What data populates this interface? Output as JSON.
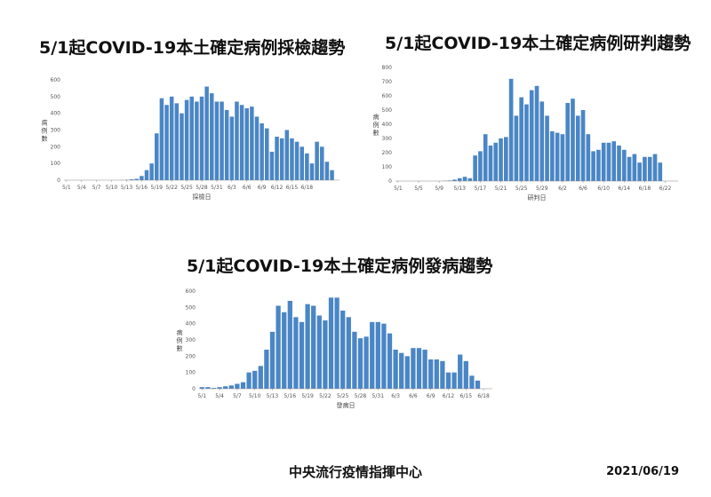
{
  "colors": {
    "bar": "#4a86c5",
    "axis": "#888888"
  },
  "footer": {
    "organization": "中央流行疫情指揮中心",
    "date": "2021/06/19"
  },
  "chart_data": [
    {
      "id": "sampling",
      "type": "bar",
      "title": "5/1起COVID-19本土確定病例採檢趨勢",
      "xlabel": "採檢日",
      "ylabel": "病例數",
      "ylim": [
        0,
        600
      ],
      "yticks": [
        0,
        100,
        200,
        300,
        400,
        500,
        600
      ],
      "tick_labels": [
        "5/1",
        "5/4",
        "5/7",
        "5/10",
        "5/13",
        "5/16",
        "5/19",
        "5/22",
        "5/25",
        "5/28",
        "5/31",
        "6/3",
        "6/6",
        "6/9",
        "6/12",
        "6/15",
        "6/18"
      ],
      "start_month": 5,
      "start_day": 1,
      "values": [
        0,
        0,
        0,
        0,
        0,
        0,
        0,
        0,
        0,
        0,
        0,
        1,
        2,
        5,
        8,
        25,
        60,
        100,
        280,
        490,
        450,
        500,
        460,
        400,
        480,
        500,
        470,
        500,
        560,
        520,
        470,
        470,
        420,
        380,
        470,
        450,
        430,
        440,
        380,
        340,
        310,
        170,
        260,
        250,
        300,
        250,
        230,
        200,
        160,
        100,
        230,
        200,
        110,
        60,
        0
      ],
      "footnote": ""
    },
    {
      "id": "diagnosis",
      "type": "bar",
      "title": "5/1起COVID-19本土確定病例研判趨勢",
      "xlabel": "研判日",
      "ylabel": "病例數",
      "ylim": [
        0,
        800
      ],
      "yticks": [
        0,
        100,
        200,
        300,
        400,
        500,
        600,
        700,
        800
      ],
      "tick_labels": [
        "5/1",
        "5/5",
        "5/9",
        "5/13",
        "5/17",
        "5/21",
        "5/25",
        "5/29",
        "6/2",
        "6/6",
        "6/10",
        "6/14",
        "6/18",
        "6/22"
      ],
      "start_month": 5,
      "start_day": 1,
      "values": [
        0,
        0,
        0,
        0,
        0,
        0,
        0,
        0,
        0,
        2,
        4,
        10,
        20,
        30,
        20,
        180,
        210,
        330,
        250,
        270,
        300,
        310,
        720,
        460,
        590,
        540,
        640,
        670,
        560,
        460,
        350,
        340,
        330,
        550,
        580,
        460,
        500,
        330,
        210,
        220,
        270,
        270,
        280,
        250,
        220,
        170,
        190,
        130,
        170,
        170,
        190,
        130,
        0,
        0,
        0
      ],
      "footnote": ""
    },
    {
      "id": "onset",
      "type": "bar",
      "title": "5/1起COVID-19本土確定病例發病趨勢",
      "xlabel": "發病日",
      "ylabel": "病例數",
      "ylim": [
        0,
        600
      ],
      "yticks": [
        0,
        100,
        200,
        300,
        400,
        500,
        600
      ],
      "tick_labels": [
        "5/1",
        "5/4",
        "5/7",
        "5/10",
        "5/13",
        "5/16",
        "5/19",
        "5/22",
        "5/25",
        "5/28",
        "5/31",
        "6/3",
        "6/6",
        "6/9",
        "6/12",
        "6/15",
        "6/18"
      ],
      "start_month": 5,
      "start_day": 1,
      "values": [
        10,
        10,
        5,
        10,
        15,
        20,
        30,
        40,
        100,
        110,
        140,
        240,
        350,
        510,
        470,
        540,
        440,
        410,
        520,
        510,
        450,
        420,
        560,
        560,
        480,
        440,
        350,
        310,
        320,
        410,
        410,
        400,
        340,
        240,
        220,
        200,
        250,
        250,
        240,
        180,
        180,
        170,
        100,
        100,
        210,
        170,
        80,
        50,
        0,
        0
      ],
      "footnote": ""
    }
  ]
}
